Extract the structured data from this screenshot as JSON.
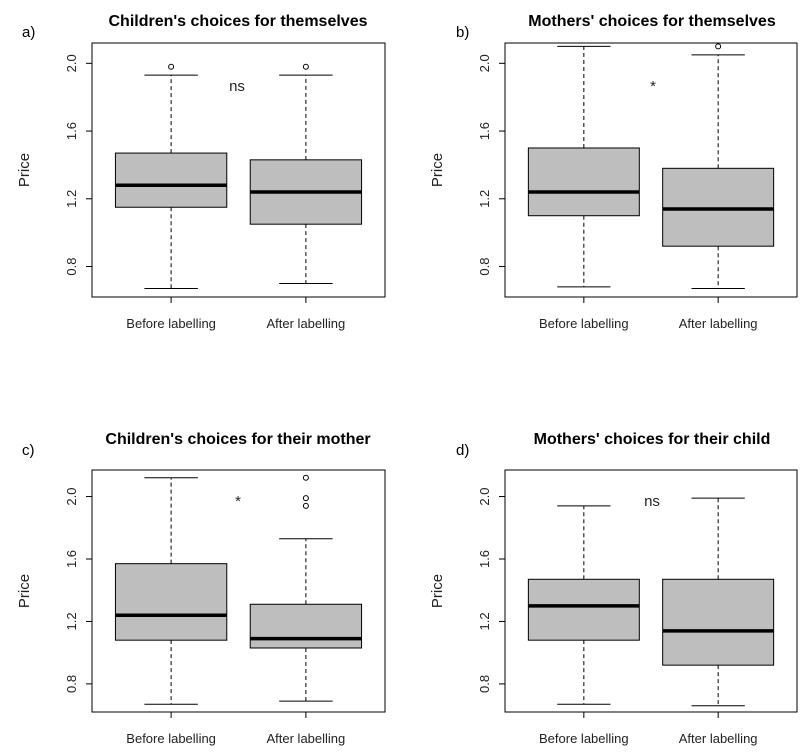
{
  "colors": {
    "box_fill": "#bebebe",
    "stroke": "#000000",
    "background": "#ffffff"
  },
  "chart_data": [
    {
      "type": "box",
      "label": "a)",
      "title": "Children's choices for themselves",
      "ylabel": "Price",
      "categories": [
        "Before labelling",
        "After labelling"
      ],
      "yticks": [
        "0.8",
        "1.2",
        "1.6",
        "2.0"
      ],
      "ylim": [
        0.62,
        2.12
      ],
      "annotation": "ns",
      "boxes": [
        {
          "whisker_low": 0.67,
          "q1": 1.15,
          "median": 1.28,
          "q3": 1.47,
          "whisker_high": 1.93,
          "outliers": [
            1.98
          ]
        },
        {
          "whisker_low": 0.7,
          "q1": 1.05,
          "median": 1.24,
          "q3": 1.43,
          "whisker_high": 1.93,
          "outliers": [
            1.98
          ]
        }
      ]
    },
    {
      "type": "box",
      "label": "b)",
      "title": "Mothers' choices for themselves",
      "ylabel": "Price",
      "categories": [
        "Before labelling",
        "After labelling"
      ],
      "yticks": [
        "0.8",
        "1.2",
        "1.6",
        "2.0"
      ],
      "ylim": [
        0.62,
        2.12
      ],
      "annotation": "*",
      "boxes": [
        {
          "whisker_low": 0.68,
          "q1": 1.1,
          "median": 1.24,
          "q3": 1.5,
          "whisker_high": 2.1,
          "outliers": []
        },
        {
          "whisker_low": 0.67,
          "q1": 0.92,
          "median": 1.14,
          "q3": 1.38,
          "whisker_high": 2.05,
          "outliers": [
            2.1
          ]
        }
      ]
    },
    {
      "type": "box",
      "label": "c)",
      "title": "Children's choices for their mother",
      "ylabel": "Price",
      "categories": [
        "Before labelling",
        "After labelling"
      ],
      "yticks": [
        "0.8",
        "1.2",
        "1.6",
        "2.0"
      ],
      "ylim": [
        0.62,
        2.17
      ],
      "annotation": "*",
      "boxes": [
        {
          "whisker_low": 0.67,
          "q1": 1.08,
          "median": 1.24,
          "q3": 1.57,
          "whisker_high": 2.12,
          "outliers": []
        },
        {
          "whisker_low": 0.69,
          "q1": 1.03,
          "median": 1.09,
          "q3": 1.31,
          "whisker_high": 1.73,
          "outliers": [
            1.94,
            1.99,
            2.12
          ]
        }
      ]
    },
    {
      "type": "box",
      "label": "d)",
      "title": "Mothers' choices for their child",
      "ylabel": "Price",
      "categories": [
        "Before labelling",
        "After labelling"
      ],
      "yticks": [
        "0.8",
        "1.2",
        "1.6",
        "2.0"
      ],
      "ylim": [
        0.62,
        2.17
      ],
      "annotation": "ns",
      "boxes": [
        {
          "whisker_low": 0.67,
          "q1": 1.08,
          "median": 1.3,
          "q3": 1.47,
          "whisker_high": 1.94,
          "outliers": []
        },
        {
          "whisker_low": 0.66,
          "q1": 0.92,
          "median": 1.14,
          "q3": 1.47,
          "whisker_high": 1.99,
          "outliers": []
        }
      ]
    }
  ]
}
